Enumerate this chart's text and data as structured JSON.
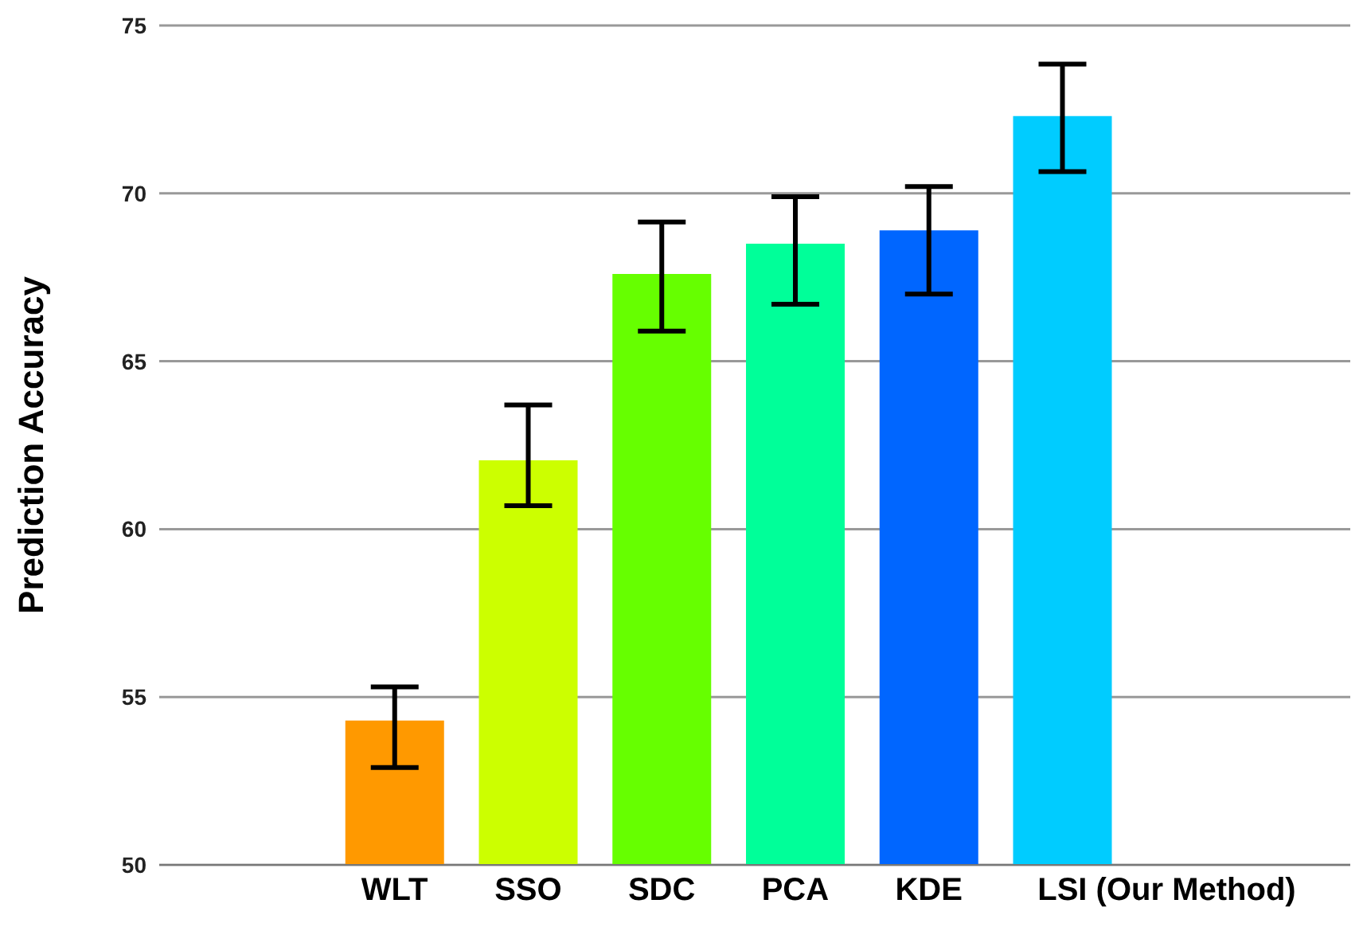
{
  "chart_data": {
    "type": "bar",
    "ylabel": "Prediction Accuracy",
    "categories": [
      null,
      "WLT",
      "SSO",
      "SDC",
      "PCA",
      "KDE",
      "LSI",
      "(Our Method)"
    ],
    "values": [
      null,
      54.3,
      62.05,
      67.6,
      68.5,
      68.9,
      72.3,
      null
    ],
    "colors": [
      "#ff9900",
      "#ff9900",
      "#ccff00",
      "#66ff00",
      "#00ff99",
      "#0066ff",
      "#00ccff",
      "#00ccff"
    ],
    "errors": [
      null,
      [
        52.9,
        55.3
      ],
      [
        60.7,
        63.7
      ],
      [
        65.9,
        69.15
      ],
      [
        66.7,
        69.9
      ],
      [
        67.0,
        70.2
      ],
      [
        70.65,
        73.85
      ],
      null
    ],
    "ylim": [
      50,
      75
    ],
    "yticks": [
      50,
      55,
      60,
      65,
      70,
      75
    ],
    "grid": "y"
  }
}
